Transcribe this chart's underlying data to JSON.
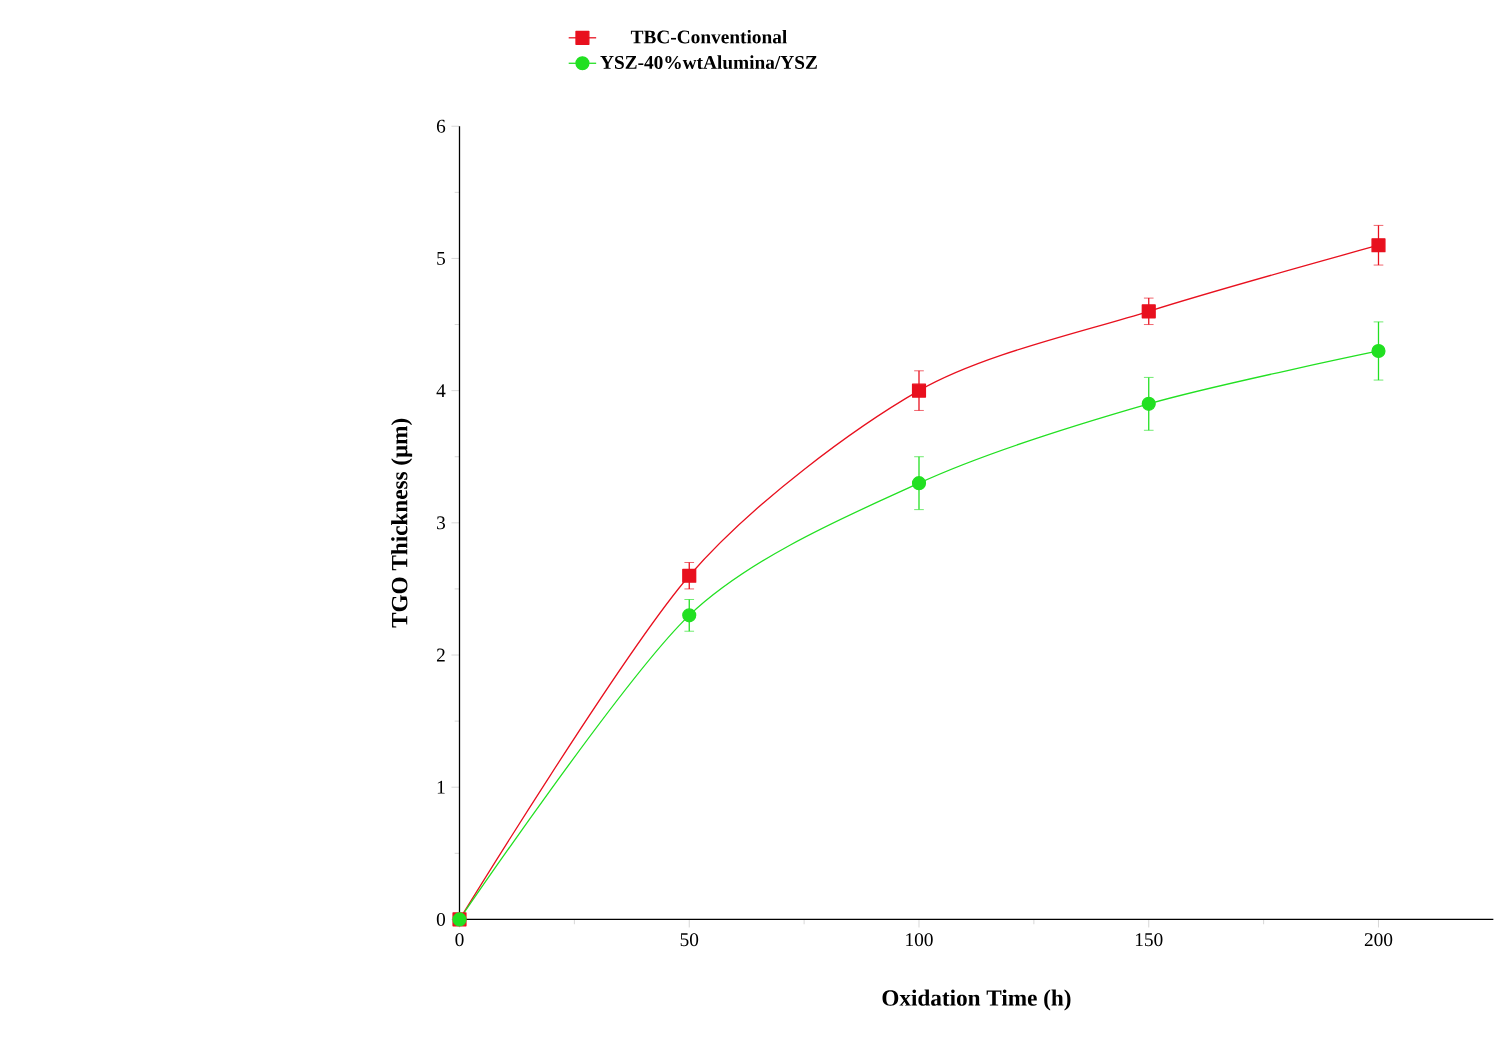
{
  "chart_data": {
    "type": "line",
    "xlabel": "Oxidation Time (h)",
    "ylabel": "TGO Thickness (μm)",
    "x": [
      0,
      50,
      100,
      150,
      200
    ],
    "series": [
      {
        "name": "TBC-Conventional",
        "color": "#e8101e",
        "marker": "square",
        "values": [
          0,
          2.6,
          4.0,
          4.6,
          5.1
        ],
        "errors": [
          0,
          0.1,
          0.15,
          0.1,
          0.15
        ]
      },
      {
        "name": "YSZ-40%wtAlumina/YSZ",
        "color": "#22e022",
        "marker": "circle",
        "values": [
          0,
          2.3,
          3.3,
          3.9,
          4.3
        ],
        "errors": [
          0,
          0.12,
          0.2,
          0.2,
          0.22
        ]
      }
    ],
    "xlim": [
      0,
      225
    ],
    "xticks": [
      0,
      50,
      100,
      150,
      200
    ],
    "ylim": [
      0,
      6
    ],
    "yticks": [
      0,
      1,
      2,
      3,
      4,
      5,
      6
    ],
    "legend": "top left",
    "line_style": "solid",
    "grid": false
  }
}
